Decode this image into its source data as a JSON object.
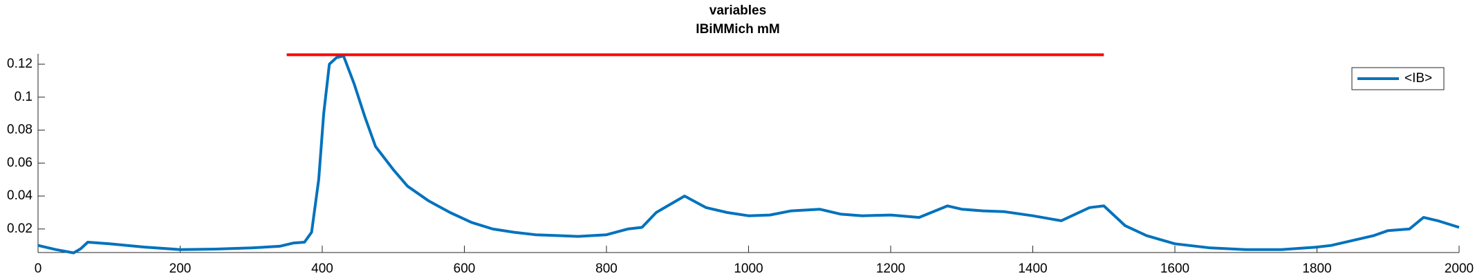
{
  "chart_data": {
    "type": "line",
    "title": [
      "variables",
      "IBiMMich mM"
    ],
    "xlim": [
      0,
      2000
    ],
    "xticks": [
      0,
      200,
      400,
      600,
      800,
      1000,
      1200,
      1400,
      1600,
      1800,
      2000
    ],
    "ylim": [
      0.0057,
      0.1263
    ],
    "yticks": [
      0.02,
      0.04,
      0.06,
      0.08,
      0.1,
      0.12
    ],
    "legend": "upper right",
    "series": [
      {
        "name": "<IB>",
        "color": "#0072BD",
        "x": [
          0,
          25,
          50,
          60,
          70,
          100,
          150,
          200,
          250,
          300,
          340,
          360,
          375,
          385,
          395,
          402,
          410,
          420,
          430,
          445,
          460,
          475,
          500,
          520,
          550,
          580,
          610,
          640,
          670,
          700,
          730,
          760,
          800,
          830,
          850,
          870,
          890,
          910,
          940,
          970,
          1000,
          1030,
          1060,
          1100,
          1130,
          1160,
          1200,
          1240,
          1280,
          1300,
          1330,
          1360,
          1400,
          1440,
          1480,
          1500,
          1530,
          1560,
          1600,
          1650,
          1700,
          1750,
          1800,
          1820,
          1850,
          1880,
          1900,
          1930,
          1950,
          1970,
          2000
        ],
        "values": [
          0.01,
          0.0075,
          0.0055,
          0.008,
          0.012,
          0.011,
          0.009,
          0.0075,
          0.0078,
          0.0085,
          0.0095,
          0.0115,
          0.012,
          0.018,
          0.05,
          0.09,
          0.12,
          0.124,
          0.125,
          0.108,
          0.088,
          0.07,
          0.056,
          0.046,
          0.037,
          0.03,
          0.024,
          0.02,
          0.018,
          0.0165,
          0.016,
          0.0155,
          0.0165,
          0.02,
          0.021,
          0.03,
          0.035,
          0.04,
          0.033,
          0.03,
          0.028,
          0.0285,
          0.031,
          0.032,
          0.029,
          0.028,
          0.0285,
          0.027,
          0.034,
          0.032,
          0.031,
          0.0305,
          0.028,
          0.025,
          0.033,
          0.034,
          0.022,
          0.016,
          0.011,
          0.0085,
          0.0075,
          0.0075,
          0.009,
          0.01,
          0.013,
          0.016,
          0.019,
          0.02,
          0.027,
          0.025,
          0.021
        ]
      },
      {
        "color": "#FF0000",
        "x": [
          350,
          1500
        ],
        "values": [
          0.1257,
          0.1257
        ]
      }
    ]
  }
}
